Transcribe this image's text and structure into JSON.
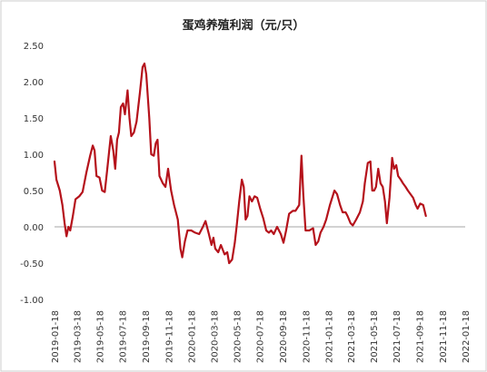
{
  "colors": {
    "line": "#b5121b",
    "zero_line": "#a6a6a6",
    "border": "#cccccc",
    "text": "#333333"
  },
  "chart_data": {
    "type": "line",
    "title": "蛋鸡养殖利润（元/只）",
    "xlabel": "",
    "ylabel": "",
    "ylim": [
      -1.0,
      2.5
    ],
    "yticks": [
      -1.0,
      -0.5,
      0.0,
      0.5,
      1.0,
      1.5,
      2.0,
      2.5
    ],
    "ytick_labels": [
      "-1.00",
      "-0.50",
      "0.00",
      "0.50",
      "1.00",
      "1.50",
      "2.00",
      "2.50"
    ],
    "xlim": [
      "2019-01-18",
      "2022-01-18"
    ],
    "xtick_labels": [
      "2019-01-18",
      "2019-03-18",
      "2019-05-18",
      "2019-07-18",
      "2019-09-18",
      "2019-11-18",
      "2020-01-18",
      "2020-03-18",
      "2020-05-18",
      "2020-07-18",
      "2020-09-18",
      "2020-11-18",
      "2021-01-18",
      "2021-03-18",
      "2021-05-18",
      "2021-07-18",
      "2021-09-18",
      "2021-11-18",
      "2022-01-18"
    ],
    "grid": false,
    "legend": "none",
    "series": [
      {
        "points": [
          [
            "2019-01-18",
            0.9
          ],
          [
            "2019-01-23",
            0.65
          ],
          [
            "2019-02-01",
            0.5
          ],
          [
            "2019-02-08",
            0.3
          ],
          [
            "2019-02-14",
            0.05
          ],
          [
            "2019-02-19",
            -0.13
          ],
          [
            "2019-02-24",
            0.0
          ],
          [
            "2019-03-01",
            -0.05
          ],
          [
            "2019-03-08",
            0.15
          ],
          [
            "2019-03-15",
            0.38
          ],
          [
            "2019-03-25",
            0.42
          ],
          [
            "2019-04-03",
            0.48
          ],
          [
            "2019-04-13",
            0.75
          ],
          [
            "2019-04-23",
            0.98
          ],
          [
            "2019-04-30",
            1.12
          ],
          [
            "2019-05-05",
            1.05
          ],
          [
            "2019-05-10",
            0.7
          ],
          [
            "2019-05-18",
            0.68
          ],
          [
            "2019-05-25",
            0.5
          ],
          [
            "2019-06-01",
            0.48
          ],
          [
            "2019-06-08",
            0.8
          ],
          [
            "2019-06-17",
            1.25
          ],
          [
            "2019-06-24",
            1.05
          ],
          [
            "2019-06-29",
            0.8
          ],
          [
            "2019-07-04",
            1.2
          ],
          [
            "2019-07-09",
            1.3
          ],
          [
            "2019-07-14",
            1.65
          ],
          [
            "2019-07-20",
            1.7
          ],
          [
            "2019-07-25",
            1.55
          ],
          [
            "2019-08-01",
            1.88
          ],
          [
            "2019-08-06",
            1.5
          ],
          [
            "2019-08-11",
            1.25
          ],
          [
            "2019-08-18",
            1.3
          ],
          [
            "2019-08-25",
            1.45
          ],
          [
            "2019-09-03",
            1.85
          ],
          [
            "2019-09-10",
            2.2
          ],
          [
            "2019-09-15",
            2.25
          ],
          [
            "2019-09-20",
            2.1
          ],
          [
            "2019-09-28",
            1.5
          ],
          [
            "2019-10-03",
            1.0
          ],
          [
            "2019-10-10",
            0.98
          ],
          [
            "2019-10-15",
            1.15
          ],
          [
            "2019-10-20",
            1.2
          ],
          [
            "2019-10-25",
            0.7
          ],
          [
            "2019-11-03",
            0.6
          ],
          [
            "2019-11-10",
            0.55
          ],
          [
            "2019-11-17",
            0.8
          ],
          [
            "2019-11-25",
            0.5
          ],
          [
            "2019-12-03",
            0.3
          ],
          [
            "2019-12-13",
            0.1
          ],
          [
            "2019-12-20",
            -0.3
          ],
          [
            "2019-12-25",
            -0.42
          ],
          [
            "2020-01-01",
            -0.2
          ],
          [
            "2020-01-08",
            -0.05
          ],
          [
            "2020-01-18",
            -0.05
          ],
          [
            "2020-01-28",
            -0.08
          ],
          [
            "2020-02-08",
            -0.1
          ],
          [
            "2020-02-18",
            0.0
          ],
          [
            "2020-02-25",
            0.08
          ],
          [
            "2020-03-05",
            -0.1
          ],
          [
            "2020-03-12",
            -0.25
          ],
          [
            "2020-03-17",
            -0.15
          ],
          [
            "2020-03-22",
            -0.3
          ],
          [
            "2020-03-30",
            -0.35
          ],
          [
            "2020-04-06",
            -0.25
          ],
          [
            "2020-04-16",
            -0.38
          ],
          [
            "2020-04-23",
            -0.35
          ],
          [
            "2020-04-28",
            -0.5
          ],
          [
            "2020-05-06",
            -0.45
          ],
          [
            "2020-05-13",
            -0.22
          ],
          [
            "2020-05-18",
            0.0
          ],
          [
            "2020-05-25",
            0.35
          ],
          [
            "2020-06-01",
            0.65
          ],
          [
            "2020-06-06",
            0.55
          ],
          [
            "2020-06-11",
            0.1
          ],
          [
            "2020-06-16",
            0.15
          ],
          [
            "2020-06-21",
            0.42
          ],
          [
            "2020-06-28",
            0.35
          ],
          [
            "2020-07-05",
            0.42
          ],
          [
            "2020-07-12",
            0.4
          ],
          [
            "2020-07-20",
            0.25
          ],
          [
            "2020-07-28",
            0.12
          ],
          [
            "2020-08-05",
            -0.05
          ],
          [
            "2020-08-12",
            -0.08
          ],
          [
            "2020-08-18",
            -0.05
          ],
          [
            "2020-08-25",
            -0.1
          ],
          [
            "2020-09-03",
            0.0
          ],
          [
            "2020-09-13",
            -0.1
          ],
          [
            "2020-09-20",
            -0.22
          ],
          [
            "2020-09-27",
            -0.05
          ],
          [
            "2020-10-05",
            0.18
          ],
          [
            "2020-10-15",
            0.22
          ],
          [
            "2020-10-22",
            0.22
          ],
          [
            "2020-11-01",
            0.3
          ],
          [
            "2020-11-07",
            0.98
          ],
          [
            "2020-11-12",
            0.45
          ],
          [
            "2020-11-18",
            -0.05
          ],
          [
            "2020-11-28",
            -0.05
          ],
          [
            "2020-12-08",
            -0.02
          ],
          [
            "2020-12-15",
            -0.25
          ],
          [
            "2020-12-22",
            -0.2
          ],
          [
            "2020-12-28",
            -0.08
          ],
          [
            "2021-01-05",
            0.0
          ],
          [
            "2021-01-12",
            0.1
          ],
          [
            "2021-01-22",
            0.3
          ],
          [
            "2021-02-03",
            0.5
          ],
          [
            "2021-02-10",
            0.45
          ],
          [
            "2021-02-18",
            0.3
          ],
          [
            "2021-02-25",
            0.2
          ],
          [
            "2021-03-05",
            0.2
          ],
          [
            "2021-03-10",
            0.15
          ],
          [
            "2021-03-18",
            0.05
          ],
          [
            "2021-03-24",
            0.02
          ],
          [
            "2021-04-02",
            0.1
          ],
          [
            "2021-04-12",
            0.2
          ],
          [
            "2021-04-20",
            0.35
          ],
          [
            "2021-04-25",
            0.6
          ],
          [
            "2021-05-03",
            0.88
          ],
          [
            "2021-05-10",
            0.9
          ],
          [
            "2021-05-15",
            0.5
          ],
          [
            "2021-05-20",
            0.5
          ],
          [
            "2021-05-25",
            0.55
          ],
          [
            "2021-05-31",
            0.8
          ],
          [
            "2021-06-06",
            0.6
          ],
          [
            "2021-06-12",
            0.55
          ],
          [
            "2021-06-18",
            0.35
          ],
          [
            "2021-06-23",
            0.05
          ],
          [
            "2021-06-30",
            0.4
          ],
          [
            "2021-07-07",
            0.95
          ],
          [
            "2021-07-12",
            0.8
          ],
          [
            "2021-07-18",
            0.85
          ],
          [
            "2021-07-23",
            0.7
          ],
          [
            "2021-07-30",
            0.65
          ],
          [
            "2021-08-05",
            0.6
          ],
          [
            "2021-08-12",
            0.55
          ],
          [
            "2021-08-18",
            0.5
          ],
          [
            "2021-08-25",
            0.45
          ],
          [
            "2021-09-01",
            0.4
          ],
          [
            "2021-09-08",
            0.3
          ],
          [
            "2021-09-13",
            0.25
          ],
          [
            "2021-09-20",
            0.32
          ],
          [
            "2021-09-28",
            0.3
          ],
          [
            "2021-10-05",
            0.15
          ]
        ]
      }
    ]
  }
}
